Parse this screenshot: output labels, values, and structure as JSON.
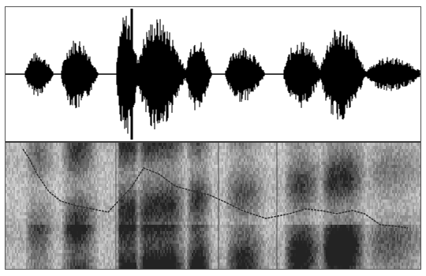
{
  "view": {
    "panels": [
      "waveform",
      "spectrogram"
    ],
    "waveform_color": "#000000",
    "background_color": "#ffffff",
    "spectrogram_tint": "#2a2a2a",
    "pitch_track_color": "#3a3a3a"
  }
}
